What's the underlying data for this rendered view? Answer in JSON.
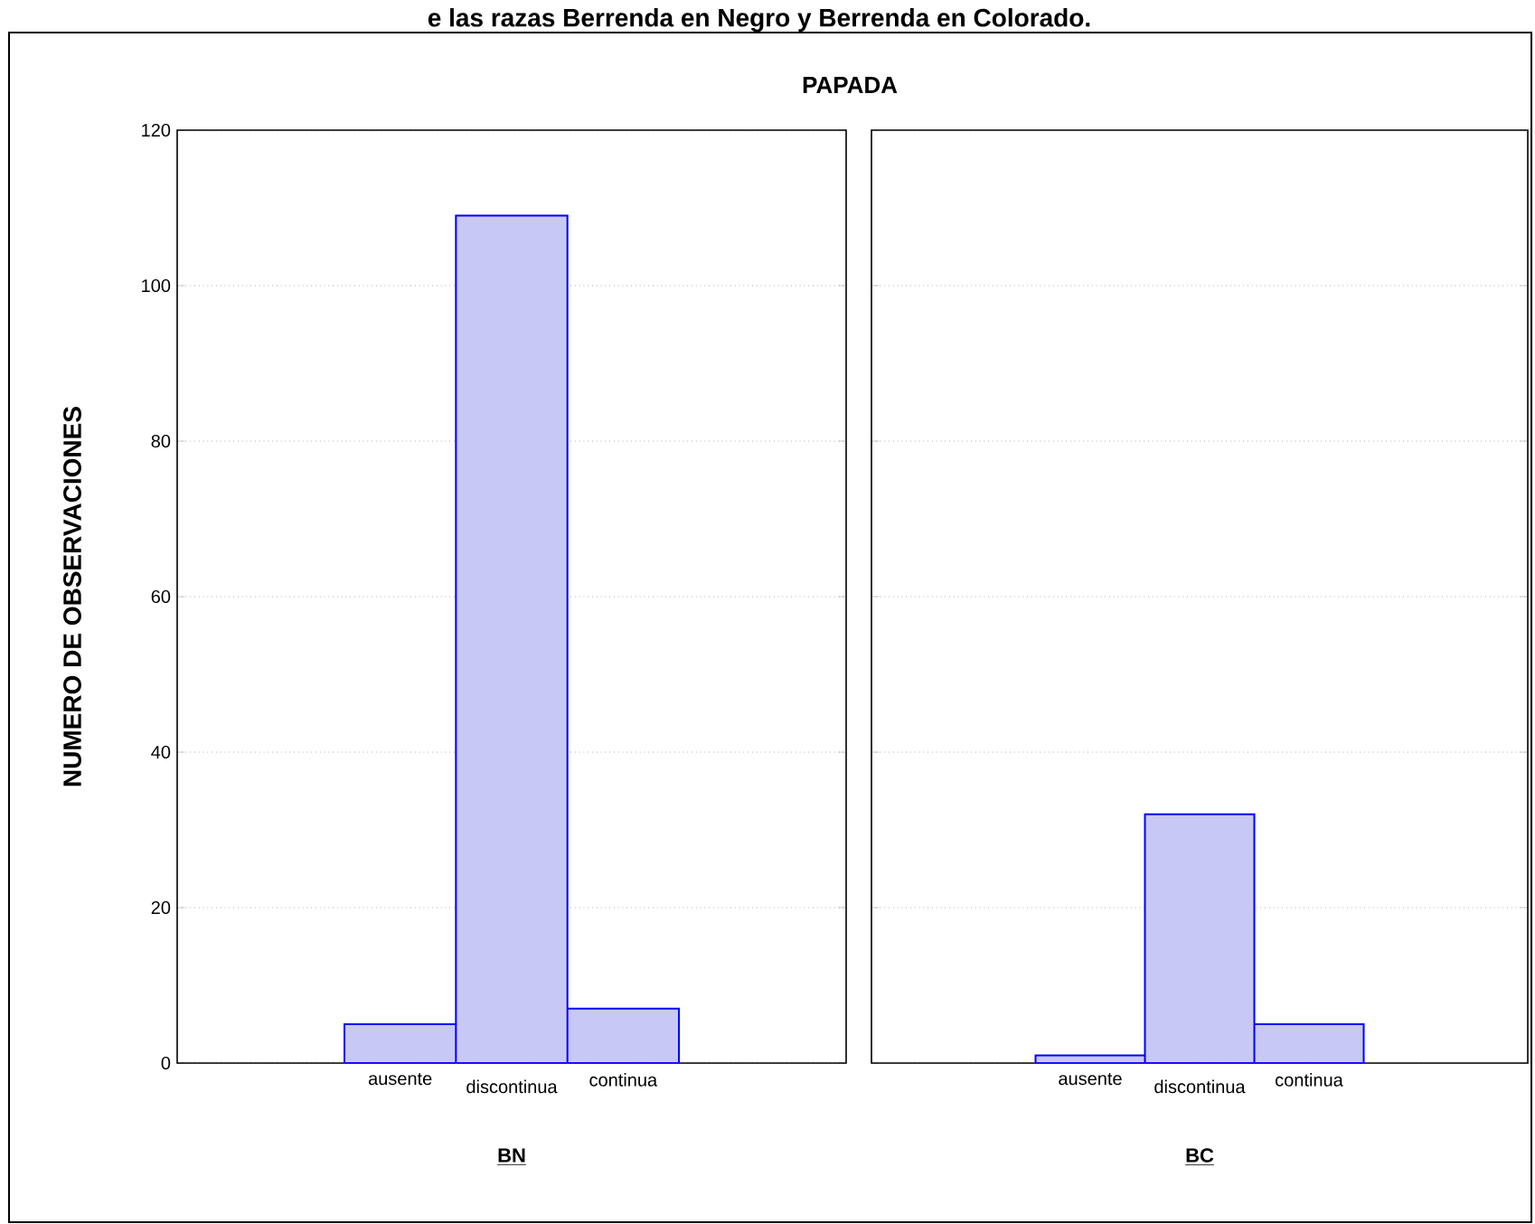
{
  "chart_data": [
    {
      "type": "bar",
      "title": "PAPADA",
      "annotations": [
        "e las razas Berrenda en Negro y Berrenda en Colorado."
      ],
      "ylabel": "NUMERO DE OBSERVACIONES",
      "xlabel": "BN",
      "categories": [
        "ausente",
        "discontinua",
        "continua"
      ],
      "values": [
        5,
        109,
        7
      ],
      "color": "#c8c8f5",
      "ylim": [
        0,
        120
      ],
      "yticks": [
        0,
        20,
        40,
        60,
        80,
        100,
        120
      ],
      "grid": "y"
    },
    {
      "type": "bar",
      "xlabel": "BC",
      "categories": [
        "ausente",
        "discontinua",
        "continua"
      ],
      "values": [
        1,
        32,
        5
      ],
      "color": "#c8c8f5",
      "ylim": [
        0,
        120
      ],
      "yticks": [
        0,
        20,
        40,
        60,
        80,
        100,
        120
      ],
      "grid": "y",
      "tick_labels": "x"
    }
  ]
}
